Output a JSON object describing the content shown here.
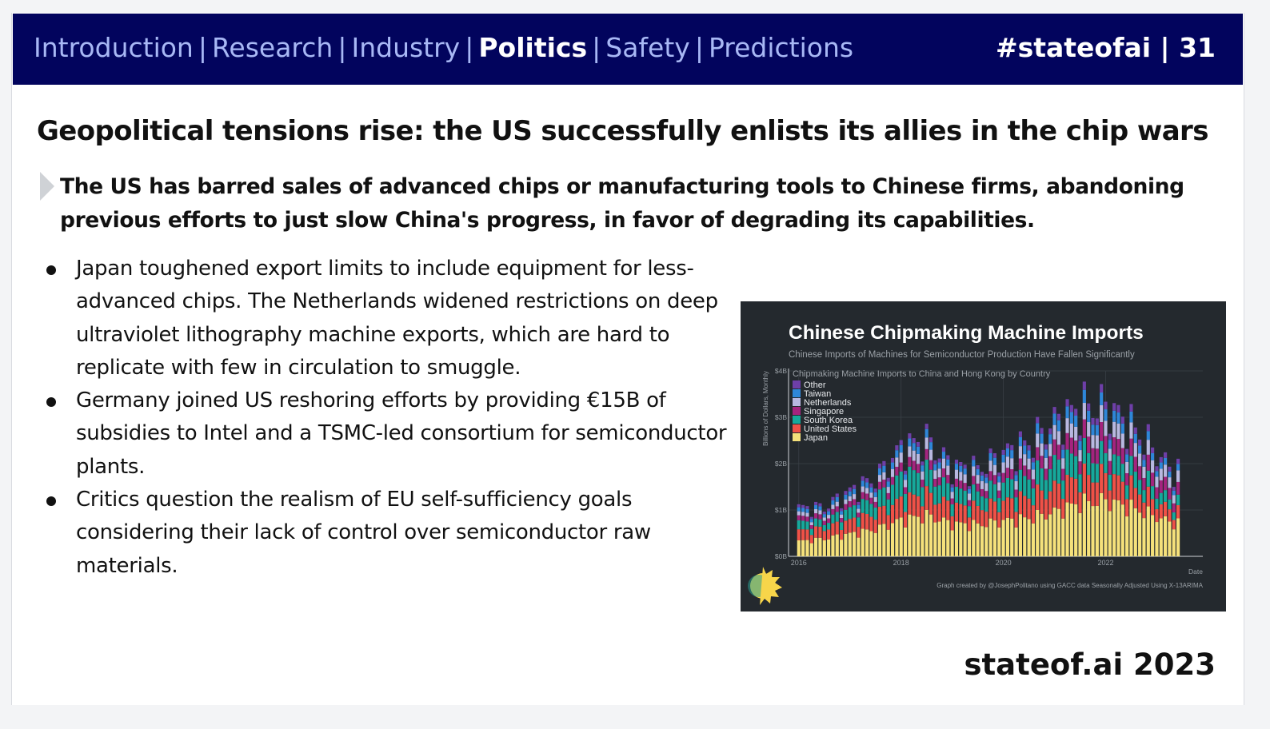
{
  "header": {
    "nav_items": [
      {
        "label": "Introduction",
        "active": false
      },
      {
        "label": "Research",
        "active": false
      },
      {
        "label": "Industry",
        "active": false
      },
      {
        "label": "Politics",
        "active": true
      },
      {
        "label": "Safety",
        "active": false
      },
      {
        "label": "Predictions",
        "active": false
      }
    ],
    "separator": "|",
    "tag": "#stateofai | 31"
  },
  "title": "Geopolitical tensions rise: the US successfully enlists its allies in the chip wars",
  "lead": "The US has barred sales of advanced chips or manufacturing tools to Chinese firms, abandoning previous efforts to just slow China's progress, in favor of degrading its capabilities.",
  "bullets": [
    "Japan toughened export limits to include equipment for less-advanced chips. The Netherlands widened restrictions on deep ultraviolet lithography machine exports, which are hard to replicate with few in circulation to smuggle.",
    "Germany joined US reshoring efforts by providing €15B of subsidies to Intel and a TSMC-led consortium for semiconductor plants.",
    "Critics question the realism of EU self-sufficiency goals considering their lack of control over semiconductor raw materials."
  ],
  "footer": "stateof.ai 2023",
  "colors": {
    "header_bg": "#02045d",
    "nav_inactive": "#a8b8f5",
    "chart_bg": "#24292e"
  },
  "chart_data": {
    "type": "bar",
    "stacked": true,
    "title": "Chinese Chipmaking Machine Imports",
    "subtitle": "Chinese Imports of Machines for Semiconductor Production Have Fallen Significantly",
    "legend_title": "Chipmaking Machine Imports to China and Hong Kong by Country",
    "legend_position": "top-left",
    "ylabel": "Billions of Dollars, Monthly",
    "xlabel": "Date",
    "y_ticks": [
      "$0B",
      "$1B",
      "$2B",
      "$3B",
      "$4B"
    ],
    "ylim": [
      0,
      4
    ],
    "x_ticks": [
      "2016",
      "2018",
      "2020",
      "2022"
    ],
    "x_tick_values": [
      2016,
      2018,
      2020,
      2022
    ],
    "xlim": [
      2015.8,
      2023.9
    ],
    "credit": "Graph created by @JosephPolitano using GACC data Seasonally Adjusted Using X-13ARIMA",
    "grid": true,
    "series": [
      {
        "name": "Japan",
        "color": "#f5e17b",
        "anchors": [
          [
            2016.0,
            0.32
          ],
          [
            2016.5,
            0.38
          ],
          [
            2017.0,
            0.48
          ],
          [
            2017.5,
            0.58
          ],
          [
            2018.0,
            0.78
          ],
          [
            2018.5,
            0.88
          ],
          [
            2019.0,
            0.7
          ],
          [
            2019.5,
            0.68
          ],
          [
            2020.0,
            0.76
          ],
          [
            2020.5,
            0.82
          ],
          [
            2021.0,
            0.95
          ],
          [
            2021.5,
            1.15
          ],
          [
            2022.0,
            1.2
          ],
          [
            2022.5,
            1.05
          ],
          [
            2023.0,
            0.85
          ],
          [
            2023.3,
            0.72
          ]
        ]
      },
      {
        "name": "United States",
        "color": "#ef5147",
        "anchors": [
          [
            2016.0,
            0.22
          ],
          [
            2016.5,
            0.22
          ],
          [
            2017.0,
            0.28
          ],
          [
            2017.5,
            0.33
          ],
          [
            2018.0,
            0.42
          ],
          [
            2018.5,
            0.45
          ],
          [
            2019.0,
            0.38
          ],
          [
            2019.5,
            0.36
          ],
          [
            2020.0,
            0.4
          ],
          [
            2020.5,
            0.45
          ],
          [
            2021.0,
            0.52
          ],
          [
            2021.5,
            0.55
          ],
          [
            2022.0,
            0.55
          ],
          [
            2022.5,
            0.45
          ],
          [
            2023.0,
            0.32
          ],
          [
            2023.3,
            0.25
          ]
        ]
      },
      {
        "name": "South Korea",
        "color": "#16a99b",
        "anchors": [
          [
            2016.0,
            0.18
          ],
          [
            2016.5,
            0.14
          ],
          [
            2017.0,
            0.24
          ],
          [
            2017.5,
            0.3
          ],
          [
            2018.0,
            0.5
          ],
          [
            2018.5,
            0.5
          ],
          [
            2019.0,
            0.32
          ],
          [
            2019.5,
            0.3
          ],
          [
            2020.0,
            0.38
          ],
          [
            2020.5,
            0.42
          ],
          [
            2021.0,
            0.5
          ],
          [
            2021.5,
            0.48
          ],
          [
            2022.0,
            0.42
          ],
          [
            2022.5,
            0.36
          ],
          [
            2023.0,
            0.26
          ],
          [
            2023.3,
            0.2
          ]
        ]
      },
      {
        "name": "Singapore",
        "color": "#a4247e",
        "anchors": [
          [
            2016.0,
            0.1
          ],
          [
            2016.5,
            0.1
          ],
          [
            2017.0,
            0.12
          ],
          [
            2017.5,
            0.14
          ],
          [
            2018.0,
            0.18
          ],
          [
            2018.5,
            0.2
          ],
          [
            2019.0,
            0.16
          ],
          [
            2019.5,
            0.16
          ],
          [
            2020.0,
            0.2
          ],
          [
            2020.5,
            0.22
          ],
          [
            2021.0,
            0.3
          ],
          [
            2021.5,
            0.34
          ],
          [
            2022.0,
            0.36
          ],
          [
            2022.5,
            0.32
          ],
          [
            2023.0,
            0.28
          ],
          [
            2023.3,
            0.24
          ]
        ]
      },
      {
        "name": "Netherlands",
        "color": "#b8b8e0",
        "anchors": [
          [
            2016.0,
            0.08
          ],
          [
            2016.5,
            0.08
          ],
          [
            2017.0,
            0.1
          ],
          [
            2017.5,
            0.12
          ],
          [
            2018.0,
            0.2
          ],
          [
            2018.5,
            0.22
          ],
          [
            2019.0,
            0.18
          ],
          [
            2019.5,
            0.18
          ],
          [
            2020.0,
            0.22
          ],
          [
            2020.5,
            0.24
          ],
          [
            2021.0,
            0.28
          ],
          [
            2021.5,
            0.3
          ],
          [
            2022.0,
            0.32
          ],
          [
            2022.5,
            0.3
          ],
          [
            2023.0,
            0.26
          ],
          [
            2023.3,
            0.22
          ]
        ]
      },
      {
        "name": "Taiwan",
        "color": "#2e86d8",
        "anchors": [
          [
            2016.0,
            0.08
          ],
          [
            2016.5,
            0.08
          ],
          [
            2017.0,
            0.1
          ],
          [
            2017.5,
            0.12
          ],
          [
            2018.0,
            0.15
          ],
          [
            2018.5,
            0.16
          ],
          [
            2019.0,
            0.12
          ],
          [
            2019.5,
            0.12
          ],
          [
            2020.0,
            0.16
          ],
          [
            2020.5,
            0.18
          ],
          [
            2021.0,
            0.22
          ],
          [
            2021.5,
            0.24
          ],
          [
            2022.0,
            0.24
          ],
          [
            2022.5,
            0.2
          ],
          [
            2023.0,
            0.14
          ],
          [
            2023.3,
            0.12
          ]
        ]
      },
      {
        "name": "Other",
        "color": "#6e3fa8",
        "anchors": [
          [
            2016.0,
            0.06
          ],
          [
            2016.5,
            0.06
          ],
          [
            2017.0,
            0.08
          ],
          [
            2017.5,
            0.09
          ],
          [
            2018.0,
            0.1
          ],
          [
            2018.5,
            0.1
          ],
          [
            2019.0,
            0.08
          ],
          [
            2019.5,
            0.08
          ],
          [
            2020.0,
            0.1
          ],
          [
            2020.5,
            0.11
          ],
          [
            2021.0,
            0.13
          ],
          [
            2021.5,
            0.15
          ],
          [
            2022.0,
            0.16
          ],
          [
            2022.5,
            0.14
          ],
          [
            2023.0,
            0.12
          ],
          [
            2023.3,
            0.1
          ]
        ]
      }
    ]
  }
}
